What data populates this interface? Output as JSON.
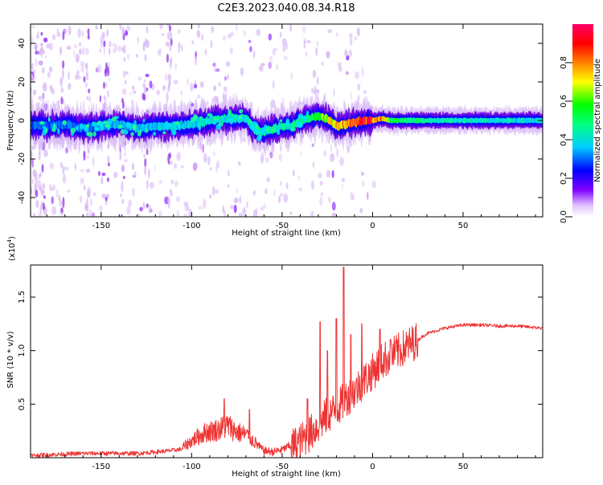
{
  "title": "C2E3.2023.040.08.34.R18",
  "colors": {
    "snr_line": "#ee3333",
    "frame": "#000000",
    "background": "#ffffff"
  },
  "chart_data": [
    {
      "type": "heatmap",
      "name": "spectrogram",
      "xlabel": "Height of straight line (km)",
      "ylabel": "Frequency (Hz)",
      "xlim": [
        -189,
        94
      ],
      "ylim": [
        -50,
        50
      ],
      "xticks": [
        -150,
        -100,
        -50,
        0,
        50
      ],
      "yticks": [
        -40,
        -20,
        0,
        20,
        40
      ],
      "colorbar": {
        "label": "Normalized spectral amplitude",
        "range": [
          0,
          1
        ],
        "ticks": [
          0.0,
          0.2,
          0.4,
          0.6,
          0.8
        ],
        "tick_labels": [
          "0.0",
          "0.2",
          "0.4",
          "0.6",
          "0.8"
        ]
      },
      "ridge_trace": {
        "x": [
          -189,
          -180,
          -170,
          -160,
          -150,
          -140,
          -130,
          -120,
          -110,
          -100,
          -90,
          -80,
          -70,
          -65,
          -60,
          -50,
          -45,
          -40,
          -35,
          -30,
          -25,
          -20,
          -15,
          -10,
          -5,
          0,
          5,
          10,
          20,
          40,
          60,
          94
        ],
        "y": [
          -2,
          -3,
          -2,
          -4,
          -3,
          -2,
          -4,
          -3,
          -3,
          -2,
          0,
          1,
          1,
          -5,
          -6,
          -3,
          -3,
          0,
          1,
          2,
          1,
          -3,
          -2,
          -1,
          0,
          0,
          1,
          0,
          0,
          0,
          0,
          0
        ]
      },
      "ridge_amplitude": {
        "x": [
          -189,
          -150,
          -100,
          -70,
          -50,
          -35,
          -25,
          -15,
          -5,
          0,
          5,
          10,
          20,
          40,
          60,
          94
        ],
        "values": [
          0.3,
          0.35,
          0.4,
          0.45,
          0.45,
          0.5,
          0.7,
          0.8,
          0.95,
          0.9,
          0.85,
          0.55,
          0.5,
          0.45,
          0.45,
          0.4
        ]
      }
    },
    {
      "type": "line",
      "name": "snr",
      "xlabel": "Height of straight line (km)",
      "ylabel": "SNR (10 * v/v)",
      "scale_note": "(x10",
      "scale_exp": "4",
      "scale_close": ")",
      "xlim": [
        -189,
        94
      ],
      "ylim": [
        0,
        1.8
      ],
      "xticks": [
        -150,
        -100,
        -50,
        0,
        50
      ],
      "yticks": [
        0.5,
        1.0,
        1.5
      ],
      "ytick_labels": [
        "0.5",
        "1.0",
        "1.5"
      ],
      "series": [
        {
          "name": "SNR",
          "x": [
            -189,
            -175,
            -160,
            -145,
            -130,
            -115,
            -105,
            -98,
            -92,
            -85,
            -80,
            -75,
            -70,
            -65,
            -60,
            -55,
            -50,
            -45,
            -40,
            -35,
            -30,
            -25,
            -20,
            -15,
            -10,
            -5,
            0,
            5,
            10,
            15,
            20,
            25,
            30,
            40,
            50,
            60,
            70,
            80,
            94
          ],
          "values": [
            0.02,
            0.03,
            0.04,
            0.04,
            0.04,
            0.06,
            0.08,
            0.15,
            0.2,
            0.22,
            0.25,
            0.2,
            0.18,
            0.12,
            0.05,
            0.04,
            0.06,
            0.1,
            0.15,
            0.22,
            0.3,
            0.4,
            0.45,
            0.55,
            0.62,
            0.72,
            0.8,
            0.9,
            0.95,
            1.0,
            1.05,
            1.1,
            1.16,
            1.21,
            1.24,
            1.24,
            1.23,
            1.23,
            1.21
          ]
        }
      ],
      "spikes": [
        {
          "x": -82,
          "value": 0.55
        },
        {
          "x": -68,
          "value": 0.45
        },
        {
          "x": -36,
          "value": 0.55
        },
        {
          "x": -29,
          "value": 1.27
        },
        {
          "x": -25,
          "value": 1.0
        },
        {
          "x": -20,
          "value": 1.3
        },
        {
          "x": -16,
          "value": 1.78
        },
        {
          "x": -12,
          "value": 1.15
        },
        {
          "x": -6,
          "value": 1.25
        },
        {
          "x": 4,
          "value": 1.2
        },
        {
          "x": 10,
          "value": 1.1
        }
      ]
    }
  ]
}
